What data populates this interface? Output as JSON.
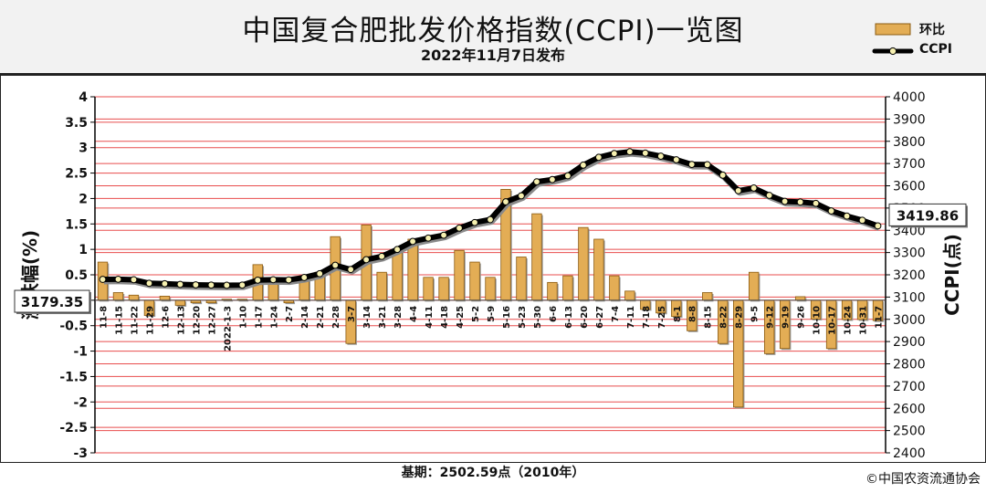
{
  "header": {
    "title": "中国复合肥批发价格指数(CCPI)一览图",
    "date": "2022年11月7日发布"
  },
  "legend": {
    "bar_label": "环比",
    "line_label": "CCPI"
  },
  "footer": {
    "base": "基期：2502.59点（2010年）",
    "copyright": "©中国农资流通协会"
  },
  "colors": {
    "bar": "#e3ad55",
    "bar_edge": "#8a5a10",
    "line": "#000000",
    "marker_fill": "#f6f0b0",
    "grid": "#e84d4d",
    "background": "#ffffff"
  },
  "chart_data": {
    "type": "bar+line",
    "y_left": {
      "label": "涨跌幅(%)",
      "range": [
        -3,
        4
      ],
      "ticks": [
        "4",
        "3.5",
        "3",
        "2.5",
        "2",
        "1.5",
        "1",
        "0.5",
        "0",
        "-0.5",
        "-1",
        "-1.5",
        "-2",
        "-2.5",
        "-3"
      ]
    },
    "y_right": {
      "label": "CCPI(点)",
      "range": [
        2400,
        4000
      ],
      "ticks": [
        "4000",
        "3900",
        "3800",
        "3700",
        "3600",
        "3500",
        "3400",
        "3300",
        "3200",
        "3100",
        "3000",
        "2900",
        "2800",
        "2700",
        "2600",
        "2500",
        "2400"
      ]
    },
    "x_ticks": [
      "11-8",
      "11-15",
      "11-22",
      "11-29",
      "12-6",
      "12-13",
      "12-20",
      "12-27",
      "2022-1-3",
      "1-10",
      "1-17",
      "1-24",
      "2-7",
      "2-14",
      "2-21",
      "2-28",
      "3-7",
      "3-14",
      "3-21",
      "3-28",
      "4-4",
      "4-11",
      "4-18",
      "4-25",
      "5-2",
      "5-9",
      "5-16",
      "5-23",
      "5-30",
      "6-6",
      "6-13",
      "6-20",
      "6-27",
      "7-4",
      "7-11",
      "7-18",
      "7-25",
      "8-1",
      "8-8",
      "8-15",
      "8-22",
      "8-29",
      "9-5",
      "9-12",
      "9-19",
      "9-26",
      "10-10",
      "10-17",
      "10-24",
      "10-31",
      "11-7"
    ],
    "grid": true,
    "series": [
      {
        "name": "环比",
        "type": "bar",
        "axis": "left",
        "values": [
          0.75,
          0.15,
          0.1,
          -0.3,
          0.08,
          -0.1,
          -0.05,
          -0.05,
          0.02,
          0.02,
          0.7,
          0.35,
          -0.05,
          0.45,
          0.55,
          1.25,
          -0.85,
          1.48,
          0.55,
          1.0,
          1.2,
          0.45,
          0.45,
          0.98,
          0.75,
          0.45,
          2.18,
          0.85,
          1.7,
          0.35,
          0.48,
          1.43,
          1.2,
          0.48,
          0.18,
          -0.18,
          -0.25,
          -0.32,
          -0.6,
          0.15,
          -0.85,
          -2.1,
          0.55,
          -1.05,
          -0.95,
          0.07,
          -0.37,
          -0.95,
          -0.38,
          -0.38,
          -0.4
        ]
      },
      {
        "name": "CCPI",
        "type": "line",
        "axis": "right",
        "values": [
          3179.35,
          3180,
          3178,
          3162,
          3160,
          3157,
          3155,
          3154,
          3153,
          3154,
          3176,
          3178,
          3177,
          3188,
          3205,
          3243,
          3224,
          3268,
          3283,
          3314,
          3350,
          3365,
          3378,
          3410,
          3435,
          3448,
          3528,
          3555,
          3618,
          3628,
          3645,
          3693,
          3728,
          3745,
          3753,
          3747,
          3733,
          3717,
          3696,
          3695,
          3648,
          3578,
          3590,
          3557,
          3530,
          3527,
          3521,
          3487,
          3464,
          3445,
          3419.86
        ]
      }
    ],
    "value_labels": {
      "first": "3179.35",
      "last": "3419.86"
    }
  }
}
